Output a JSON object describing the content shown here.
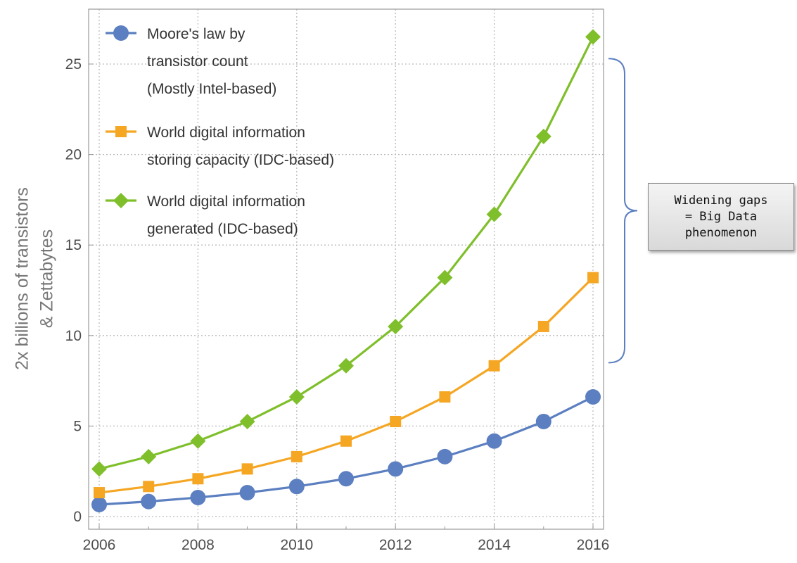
{
  "chart_data": {
    "type": "line",
    "title": "",
    "xlabel": "",
    "ylabel": [
      "2x billions of transistors",
      "& Zettabytes"
    ],
    "x": [
      2006,
      2007,
      2008,
      2009,
      2010,
      2011,
      2012,
      2013,
      2014,
      2015,
      2016
    ],
    "xlim": [
      2006,
      2016
    ],
    "ylim": [
      0,
      27
    ],
    "xticks": [
      2006,
      2008,
      2010,
      2012,
      2014,
      2016
    ],
    "yticks": [
      0,
      5,
      10,
      15,
      20,
      25
    ],
    "grid": true,
    "legend_position": "top-left",
    "series": [
      {
        "name": "Moore's law by transistor count (Mostly Intel-based)",
        "legend_lines": [
          "Moore's law by",
          "transistor count",
          "(Mostly Intel-based)"
        ],
        "color": "#5b7fc0",
        "marker": "circle",
        "values": [
          0.66,
          0.83,
          1.05,
          1.32,
          1.66,
          2.09,
          2.63,
          3.31,
          4.17,
          5.25,
          6.61
        ]
      },
      {
        "name": "World digital information storing capacity (IDC-based)",
        "legend_lines": [
          "World digital information",
          "storing capacity (IDC-based)"
        ],
        "color": "#f5a623",
        "marker": "square",
        "values": [
          1.32,
          1.66,
          2.09,
          2.63,
          3.31,
          4.17,
          5.25,
          6.61,
          8.33,
          10.5,
          13.2
        ]
      },
      {
        "name": "World digital information generated (IDC-based)",
        "legend_lines": [
          "World digital information",
          "generated (IDC-based)"
        ],
        "color": "#7fbf2b",
        "marker": "diamond",
        "values": [
          2.63,
          3.31,
          4.17,
          5.25,
          6.61,
          8.33,
          10.5,
          13.2,
          16.7,
          21.0,
          26.5
        ]
      }
    ],
    "annotations": [
      {
        "text_lines": [
          "Widening gaps",
          "= Big Data",
          "phenomenon"
        ],
        "bracket_range": [
          8.5,
          25.3
        ]
      }
    ]
  }
}
